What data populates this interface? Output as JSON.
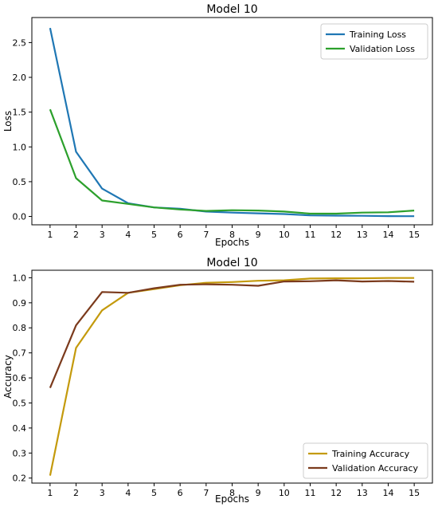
{
  "chart_data": [
    {
      "type": "line",
      "title": "Model 10",
      "xlabel": "Epochs",
      "ylabel": "Loss",
      "x": [
        1,
        2,
        3,
        4,
        5,
        6,
        7,
        8,
        9,
        10,
        11,
        12,
        13,
        14,
        15
      ],
      "x_ticks": [
        "1",
        "2",
        "3",
        "4",
        "5",
        "6",
        "7",
        "8",
        "9",
        "10",
        "11",
        "12",
        "13",
        "14",
        "15"
      ],
      "xlim": [
        0.3,
        15.7
      ],
      "ylim": [
        -0.12,
        2.86
      ],
      "y_ticks": [
        "0.0",
        "0.5",
        "1.0",
        "1.5",
        "2.0",
        "2.5"
      ],
      "y_tick_values": [
        0,
        0.5,
        1.0,
        1.5,
        2.0,
        2.5
      ],
      "grid": false,
      "legend_position": "top-right",
      "series": [
        {
          "name": "Training Loss",
          "color": "#1f77b4",
          "values": [
            2.71,
            0.93,
            0.4,
            0.19,
            0.13,
            0.11,
            0.07,
            0.055,
            0.045,
            0.035,
            0.015,
            0.012,
            0.01,
            0.005,
            0.004
          ]
        },
        {
          "name": "Validation Loss",
          "color": "#2ca02c",
          "values": [
            1.54,
            0.55,
            0.23,
            0.18,
            0.13,
            0.1,
            0.08,
            0.09,
            0.085,
            0.07,
            0.04,
            0.04,
            0.055,
            0.06,
            0.085
          ]
        }
      ]
    },
    {
      "type": "line",
      "title": "Model 10",
      "xlabel": "Epochs",
      "ylabel": "Accuracy",
      "x": [
        1,
        2,
        3,
        4,
        5,
        6,
        7,
        8,
        9,
        10,
        11,
        12,
        13,
        14,
        15
      ],
      "x_ticks": [
        "1",
        "2",
        "3",
        "4",
        "5",
        "6",
        "7",
        "8",
        "9",
        "10",
        "11",
        "12",
        "13",
        "14",
        "15"
      ],
      "xlim": [
        0.3,
        15.7
      ],
      "ylim": [
        0.18,
        1.03
      ],
      "y_ticks": [
        "0.2",
        "0.3",
        "0.4",
        "0.5",
        "0.6",
        "0.7",
        "0.8",
        "0.9",
        "1.0"
      ],
      "y_tick_values": [
        0.2,
        0.3,
        0.4,
        0.5,
        0.6,
        0.7,
        0.8,
        0.9,
        1.0
      ],
      "grid": false,
      "legend_position": "bottom-right",
      "series": [
        {
          "name": "Training Accuracy",
          "color": "#c49a0c",
          "values": [
            0.21,
            0.72,
            0.87,
            0.94,
            0.955,
            0.97,
            0.98,
            0.983,
            0.988,
            0.99,
            0.997,
            0.998,
            0.998,
            0.999,
            0.999
          ]
        },
        {
          "name": "Validation Accuracy",
          "color": "#7b3a1c",
          "values": [
            0.56,
            0.81,
            0.943,
            0.94,
            0.958,
            0.972,
            0.974,
            0.972,
            0.968,
            0.985,
            0.986,
            0.99,
            0.985,
            0.987,
            0.984
          ]
        }
      ]
    }
  ]
}
